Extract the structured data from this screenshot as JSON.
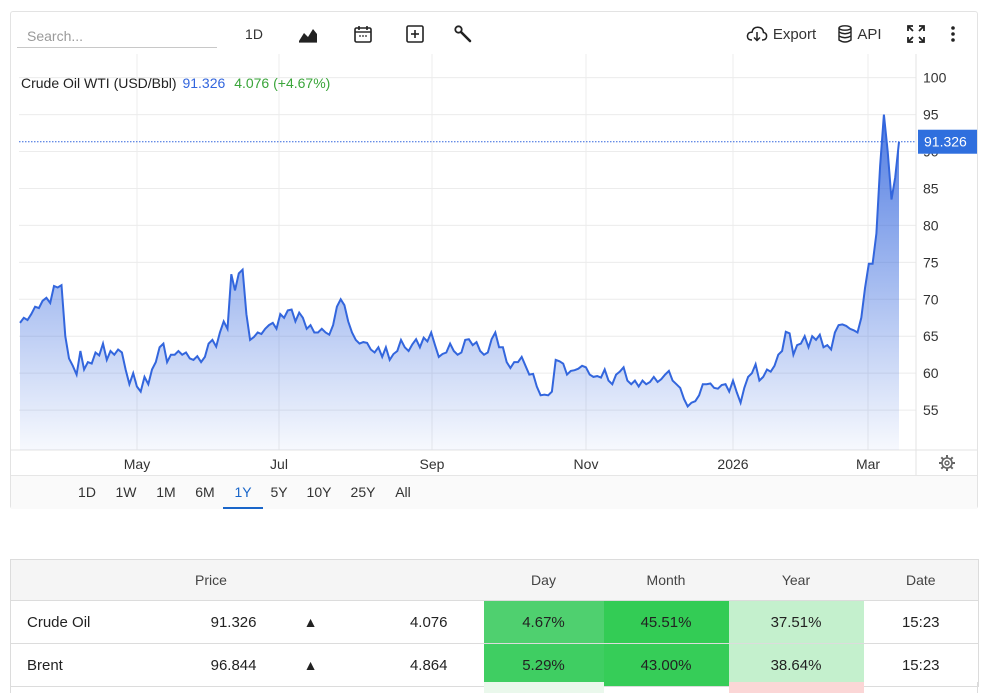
{
  "toolbar": {
    "search_placeholder": "Search...",
    "interval_label": "1D",
    "export_label": "Export",
    "api_label": "API"
  },
  "legend": {
    "name": "Crude Oil WTI (USD/Bbl)",
    "price": "91.326",
    "change": "4.076 (+4.67%)"
  },
  "colors": {
    "line": "#3366dd",
    "price_label_bg": "#2f6fde",
    "change_text": "#3aa53a",
    "day_cell": "#4fd06f",
    "month_cell": "#33cc55",
    "year_cell": "#c4f0cd"
  },
  "chart_data": {
    "type": "area",
    "x_ticks": [
      "May",
      "Jul",
      "Sep",
      "Nov",
      "2026",
      "Mar"
    ],
    "y_ticks": [
      55,
      60,
      65,
      70,
      75,
      80,
      85,
      90,
      95,
      100
    ],
    "ylim": [
      49.6,
      103.2
    ],
    "last_price_label": "91.326",
    "last_price": 91.326,
    "grid": true,
    "values": [
      66.8,
      67.5,
      67.2,
      68,
      69,
      68.8,
      69.8,
      70.2,
      69.5,
      71.8,
      71.6,
      71.9,
      65,
      62,
      61,
      59.8,
      63,
      60.5,
      61.5,
      61.3,
      62.8,
      62.4,
      64,
      61.8,
      63,
      62.5,
      63.2,
      62.8,
      60.5,
      58.5,
      60,
      58.2,
      57.5,
      59.5,
      58.5,
      60.5,
      61.5,
      63.5,
      64,
      61.5,
      62.5,
      62.5,
      63,
      62.5,
      62.8,
      62,
      61.8,
      62.3,
      61.5,
      62.2,
      64,
      64.5,
      63.6,
      65.5,
      67,
      66,
      73.4,
      71.2,
      73.5,
      74,
      68,
      64.5,
      64.9,
      65.5,
      65.3,
      66,
      66.5,
      66.8,
      66,
      68,
      67.5,
      68.5,
      68.6,
      67,
      68.2,
      67.5,
      66,
      66.5,
      65.5,
      65.5,
      66,
      65.5,
      65.2,
      66.5,
      69,
      70,
      69.2,
      67,
      65.5,
      64.5,
      64,
      64.2,
      64.1,
      63.2,
      62.8,
      63.5,
      62.2,
      63.5,
      61.8,
      62.6,
      63,
      64.5,
      63.5,
      63,
      63.9,
      64.6,
      63.5,
      64.8,
      64.3,
      65.5,
      63.8,
      62.2,
      62.6,
      62.8,
      64,
      63,
      62.5,
      62.8,
      64.5,
      64.6,
      63.8,
      64.2,
      63,
      62.5,
      62.8,
      64.6,
      65.5,
      63.5,
      63.5,
      61.5,
      60.7,
      61.5,
      61.5,
      62.2,
      61,
      59.8,
      59.9,
      58.2,
      57,
      57.1,
      57,
      57.5,
      61.8,
      61.6,
      61.3,
      59.8,
      60.3,
      60.4,
      60.6,
      61,
      60.8,
      59.8,
      59.5,
      59.6,
      59.4,
      60.5,
      59,
      58.5,
      59.8,
      60.2,
      60.8,
      59,
      58.5,
      59,
      58.2,
      59,
      58.5,
      58.8,
      59.5,
      58.8,
      59.2,
      59.8,
      60.3,
      59,
      58.5,
      58,
      56.5,
      55.5,
      56,
      56.2,
      57,
      58.5,
      58.5,
      58.6,
      58,
      57.9,
      58.4,
      58.5,
      57.5,
      59,
      57.4,
      56,
      58,
      59.5,
      60,
      61.2,
      59,
      59.5,
      60.5,
      60.2,
      61,
      62.5,
      63,
      65.6,
      65.4,
      62.5,
      63.8,
      64,
      65,
      63.5,
      65,
      64.5,
      65.2,
      63.5,
      63.8,
      63.2,
      65.5,
      66.5,
      66.6,
      66.4,
      66,
      65.8,
      65.5,
      67.5,
      71.5,
      74.8,
      74.8,
      78.9,
      88,
      95,
      90,
      83.5,
      86.5,
      91.3
    ]
  },
  "range_buttons": [
    "1D",
    "1W",
    "1M",
    "6M",
    "1Y",
    "5Y",
    "10Y",
    "25Y",
    "All"
  ],
  "table": {
    "headers": [
      "",
      "Price",
      "",
      "",
      "Day",
      "Month",
      "Year",
      "Date"
    ],
    "rows": [
      {
        "name": "Crude Oil",
        "price": "91.326",
        "arrow": "▲",
        "change": "4.076",
        "day": "4.67%",
        "month": "45.51%",
        "year": "37.51%",
        "date": "15:23"
      },
      {
        "name": "Brent",
        "price": "96.844",
        "arrow": "▲",
        "change": "4.864",
        "day": "5.29%",
        "month": "43.00%",
        "year": "38.64%",
        "date": "15:23"
      }
    ]
  }
}
